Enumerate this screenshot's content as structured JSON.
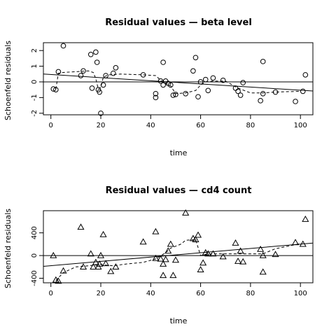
{
  "chart_data": [
    {
      "type": "scatter",
      "title": "Residual values —  beta level",
      "xlabel": "time",
      "ylabel": "Schoenfeld residuals",
      "xlim": [
        -3,
        105
      ],
      "ylim": [
        -2.1,
        2.5
      ],
      "xticks": [
        "0",
        "20",
        "40",
        "60",
        "80",
        "100"
      ],
      "yticks": [
        "-2",
        "-1",
        "0",
        "1",
        "2"
      ],
      "marker": "circle",
      "points": {
        "x": [
          1,
          2,
          3,
          5,
          12,
          13,
          16,
          16.5,
          18,
          18.5,
          19,
          19.5,
          20,
          21,
          22,
          25,
          26,
          37,
          42,
          42,
          44,
          45,
          45,
          46,
          47,
          48,
          49,
          50,
          54,
          57,
          58,
          59,
          60,
          62,
          63,
          65,
          69,
          74,
          75,
          76,
          77,
          84,
          85,
          85,
          90,
          98,
          101,
          102
        ],
        "y": [
          -0.45,
          -0.5,
          0.65,
          2.3,
          0.4,
          0.7,
          1.75,
          -0.4,
          1.9,
          1.25,
          -0.5,
          -0.65,
          -2.0,
          -0.2,
          0.4,
          0.55,
          0.9,
          0.45,
          -0.75,
          -1.0,
          0.05,
          1.25,
          -0.2,
          0.05,
          -0.1,
          -0.2,
          -0.85,
          -0.8,
          -0.75,
          0.7,
          1.55,
          -0.95,
          0.0,
          0.15,
          -0.55,
          0.25,
          0.1,
          -0.4,
          -0.6,
          -0.85,
          -0.05,
          -1.2,
          1.3,
          -0.75,
          -0.65,
          -1.25,
          -0.6,
          0.45
        ]
      },
      "smooth": {
        "x": [
          2,
          3,
          5,
          10,
          15,
          17,
          18,
          19,
          20,
          21,
          23,
          28,
          37,
          42,
          44,
          46,
          48,
          50,
          54,
          58,
          60,
          62,
          65,
          70,
          75,
          80,
          85,
          90,
          100
        ],
        "y": [
          -0.45,
          0.55,
          0.6,
          0.65,
          0.7,
          0.6,
          0.2,
          -0.45,
          -0.35,
          0.3,
          0.45,
          0.5,
          0.45,
          0.4,
          0.1,
          -0.1,
          -0.25,
          -0.75,
          -0.7,
          -0.55,
          -0.2,
          0.0,
          0.05,
          0.05,
          -0.4,
          -0.7,
          -0.7,
          -0.65,
          -0.6
        ]
      },
      "fit": {
        "x": [
          -3,
          105
        ],
        "y": [
          0.5,
          -0.58
        ]
      },
      "hline": 0
    },
    {
      "type": "scatter",
      "title": "Residual values —  cd4 count",
      "xlabel": "time",
      "ylabel": "Schoenfeld residuals",
      "xlim": [
        -3,
        105
      ],
      "ylim": [
        -480,
        790
      ],
      "xticks": [
        "0",
        "20",
        "40",
        "60",
        "80",
        "100"
      ],
      "yticks": [
        "-400",
        "0",
        "400"
      ],
      "marker": "triangle",
      "points": {
        "x": [
          1,
          2,
          3,
          5,
          12,
          13,
          16,
          17,
          18,
          19,
          19.5,
          20,
          21,
          22,
          24,
          26,
          37,
          42,
          42,
          44,
          45,
          45,
          46,
          47,
          48,
          49,
          50,
          54,
          57,
          58,
          59,
          60,
          61,
          62,
          63,
          65,
          69,
          74,
          75,
          76,
          77,
          84,
          85,
          85,
          90,
          98,
          101,
          102
        ],
        "y": [
          0,
          -430,
          -450,
          -270,
          500,
          -200,
          30,
          -200,
          -120,
          -200,
          -150,
          0,
          370,
          -140,
          -280,
          -200,
          240,
          420,
          -50,
          -60,
          -350,
          -150,
          -70,
          80,
          200,
          -350,
          -80,
          750,
          300,
          280,
          360,
          -250,
          -130,
          50,
          30,
          30,
          -20,
          220,
          -100,
          80,
          -110,
          110,
          -290,
          0,
          20,
          230,
          200,
          640
        ]
      },
      "smooth": {
        "x": [
          2,
          5,
          10,
          15,
          20,
          25,
          30,
          37,
          42,
          46,
          48,
          52,
          54,
          58,
          60,
          62,
          65,
          75,
          85,
          90,
          100
        ],
        "y": [
          -440,
          -300,
          -200,
          -180,
          -160,
          -180,
          -150,
          -120,
          -60,
          50,
          130,
          200,
          270,
          280,
          0,
          20,
          30,
          30,
          30,
          120,
          210
        ]
      },
      "fit": {
        "x": [
          -3,
          105
        ],
        "y": [
          -190,
          220
        ]
      },
      "hline": 0
    }
  ]
}
